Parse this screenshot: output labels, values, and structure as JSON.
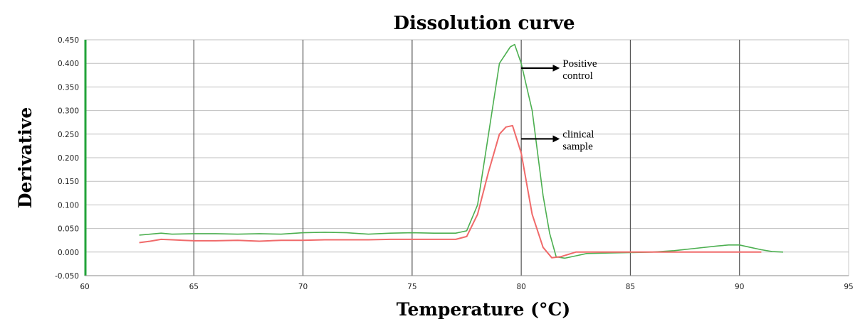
{
  "chart_data": {
    "type": "line",
    "title": "Dissolution curve",
    "xlabel": "Temperature (°C)",
    "ylabel": "Derivative",
    "xlim": [
      60,
      95
    ],
    "ylim": [
      -0.05,
      0.45
    ],
    "x_ticks": [
      60,
      65,
      70,
      75,
      80,
      85,
      90,
      95
    ],
    "x_tick_labels": [
      "60",
      "65",
      "70",
      "75",
      "80",
      "85",
      "90",
      "95"
    ],
    "y_ticks": [
      -0.05,
      0,
      0.05,
      0.1,
      0.15,
      0.2,
      0.25,
      0.3,
      0.35,
      0.4,
      0.45
    ],
    "y_tick_labels": [
      "-0.050",
      "0.000",
      "0.050",
      "0.100",
      "0.150",
      "0.200",
      "0.250",
      "0.300",
      "0.350",
      "0.400",
      "0.450"
    ],
    "grid": true,
    "colors": {
      "positive": "#4caf50",
      "clinical": "#f06a6a",
      "y_axis": "#22a33a",
      "grid": "#555555",
      "hgrid": "#bfbfbf"
    },
    "series": [
      {
        "color": "#4caf50",
        "x": [
          62.5,
          63.0,
          63.5,
          64.0,
          65.0,
          66.0,
          67.0,
          68.0,
          69.0,
          70.0,
          71.0,
          72.0,
          73.0,
          74.0,
          75.0,
          76.0,
          77.0,
          77.5,
          78.0,
          78.5,
          79.0,
          79.5,
          79.7,
          80.0,
          80.5,
          81.0,
          81.3,
          81.6,
          82.0,
          82.5,
          83.0,
          84.0,
          85.0,
          86.0,
          87.0,
          88.0,
          89.0,
          89.5,
          90.0,
          90.5,
          91.0,
          91.5,
          92.0
        ],
        "y": [
          0.036,
          0.038,
          0.04,
          0.038,
          0.039,
          0.039,
          0.038,
          0.039,
          0.038,
          0.041,
          0.042,
          0.041,
          0.038,
          0.04,
          0.041,
          0.04,
          0.04,
          0.045,
          0.1,
          0.25,
          0.4,
          0.435,
          0.44,
          0.4,
          0.3,
          0.12,
          0.04,
          -0.01,
          -0.013,
          -0.008,
          -0.003,
          -0.002,
          -0.001,
          0.0,
          0.003,
          0.008,
          0.013,
          0.015,
          0.015,
          0.01,
          0.005,
          0.001,
          0.0
        ]
      },
      {
        "color": "#f06a6a",
        "x": [
          62.5,
          63.0,
          63.5,
          64.0,
          64.5,
          65.0,
          66.0,
          67.0,
          68.0,
          69.0,
          70.0,
          71.0,
          72.0,
          73.0,
          74.0,
          75.0,
          76.0,
          77.0,
          77.5,
          78.0,
          78.5,
          79.0,
          79.3,
          79.6,
          80.0,
          80.5,
          81.0,
          81.4,
          81.8,
          82.5,
          83.0,
          84.0,
          85.0,
          86.0,
          88.0,
          90.0,
          91.0
        ],
        "y": [
          0.02,
          0.023,
          0.027,
          0.026,
          0.025,
          0.024,
          0.024,
          0.025,
          0.023,
          0.025,
          0.025,
          0.026,
          0.026,
          0.026,
          0.027,
          0.027,
          0.027,
          0.027,
          0.033,
          0.08,
          0.17,
          0.25,
          0.265,
          0.268,
          0.21,
          0.08,
          0.01,
          -0.012,
          -0.01,
          0.0,
          0.0,
          0.0,
          0.0,
          0.0,
          0.0,
          0.0,
          0.0
        ]
      }
    ],
    "annotations": [
      {
        "lines": [
          "Positive",
          "control"
        ],
        "arrow_from": [
          80.0,
          0.39
        ],
        "arrow_to": [
          81.7,
          0.39
        ]
      },
      {
        "lines": [
          "clinical",
          "sample"
        ],
        "arrow_from": [
          80.0,
          0.24
        ],
        "arrow_to": [
          81.7,
          0.24
        ]
      }
    ]
  }
}
